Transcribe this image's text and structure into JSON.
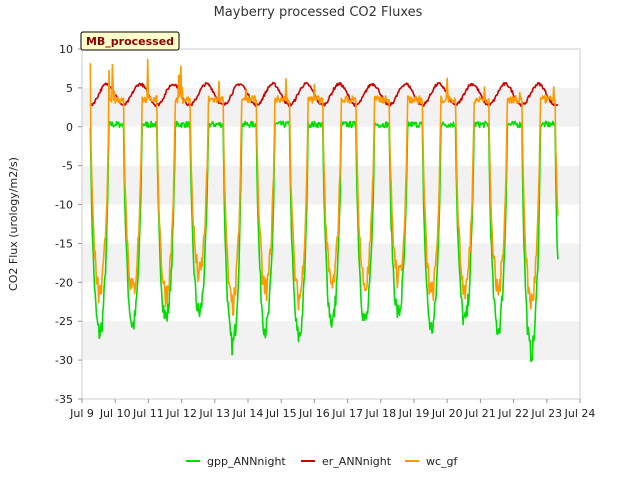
{
  "chart_data": {
    "type": "line",
    "title": "Mayberry processed CO2 Fluxes",
    "xlabel": "",
    "ylabel": "CO2 Flux (urology/m2/s)",
    "badge": "MB_processed",
    "ylim": [
      -35,
      10
    ],
    "yticks": [
      10,
      5,
      0,
      -5,
      -10,
      -15,
      -20,
      -25,
      -30,
      -35
    ],
    "xlim": [
      9,
      24
    ],
    "xticks": [
      9,
      10,
      11,
      12,
      13,
      14,
      15,
      16,
      17,
      18,
      19,
      20,
      21,
      22,
      23,
      24
    ],
    "xtick_labels": [
      "Jul 9",
      "Jul 10",
      "Jul 11",
      "Jul 12",
      "Jul 13",
      "Jul 14",
      "Jul 15",
      "Jul 16",
      "Jul 17",
      "Jul 18",
      "Jul 19",
      "Jul 20",
      "Jul 21",
      "Jul 22",
      "Jul 23",
      "Jul 24"
    ],
    "grid": "horizontal-bands",
    "legend_position": "bottom-center",
    "series": [
      {
        "name": "gpp_ANNnight",
        "color": "#00dd00",
        "day_start": 9.25,
        "day_end": 23.35,
        "night_level": 0.3,
        "daily_minimum": [
          -26.5,
          -25.5,
          -24.5,
          -24,
          -28,
          -26,
          -27,
          -25,
          -25,
          -24,
          -26,
          -25,
          -26,
          -29
        ]
      },
      {
        "name": "er_ANNnight",
        "color": "#cc0000",
        "day_start": 9.25,
        "day_end": 23.35,
        "peak_value": 5.5,
        "trough_value": 2.8
      },
      {
        "name": "wc_gf",
        "color": "#ff9900",
        "day_start": 9.25,
        "day_end": 23.35,
        "night_level": 3.5,
        "daily_minimum": [
          -21.5,
          -21,
          -21.5,
          -19,
          -23,
          -21,
          -22,
          -20.5,
          -20.5,
          -19.5,
          -21.5,
          -21,
          -21,
          -22.5
        ],
        "max_value": 8.5
      }
    ]
  }
}
